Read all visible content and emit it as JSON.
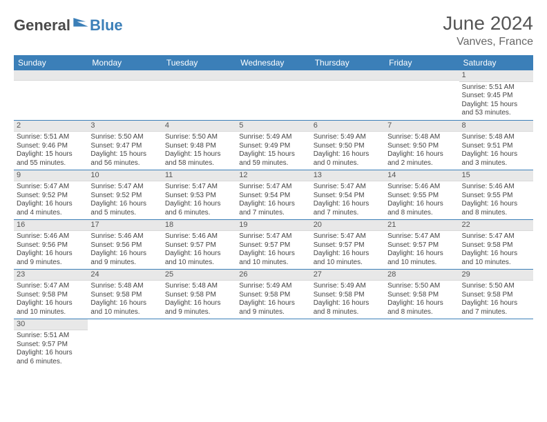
{
  "logo": {
    "text_gray": "General",
    "text_blue": "Blue"
  },
  "title": "June 2024",
  "location": "Vanves, France",
  "colors": {
    "header_bg": "#3b7fb8",
    "header_fg": "#ffffff",
    "daynum_bg": "#e8e8e8",
    "row_border": "#3b7fb8",
    "logo_blue": "#3b7fb8",
    "logo_gray": "#4a4a4a"
  },
  "weekdays": [
    "Sunday",
    "Monday",
    "Tuesday",
    "Wednesday",
    "Thursday",
    "Friday",
    "Saturday"
  ],
  "weeks": [
    [
      null,
      null,
      null,
      null,
      null,
      null,
      {
        "n": "1",
        "lines": [
          "Sunrise: 5:51 AM",
          "Sunset: 9:45 PM",
          "Daylight: 15 hours",
          "and 53 minutes."
        ]
      }
    ],
    [
      {
        "n": "2",
        "lines": [
          "Sunrise: 5:51 AM",
          "Sunset: 9:46 PM",
          "Daylight: 15 hours",
          "and 55 minutes."
        ]
      },
      {
        "n": "3",
        "lines": [
          "Sunrise: 5:50 AM",
          "Sunset: 9:47 PM",
          "Daylight: 15 hours",
          "and 56 minutes."
        ]
      },
      {
        "n": "4",
        "lines": [
          "Sunrise: 5:50 AM",
          "Sunset: 9:48 PM",
          "Daylight: 15 hours",
          "and 58 minutes."
        ]
      },
      {
        "n": "5",
        "lines": [
          "Sunrise: 5:49 AM",
          "Sunset: 9:49 PM",
          "Daylight: 15 hours",
          "and 59 minutes."
        ]
      },
      {
        "n": "6",
        "lines": [
          "Sunrise: 5:49 AM",
          "Sunset: 9:50 PM",
          "Daylight: 16 hours",
          "and 0 minutes."
        ]
      },
      {
        "n": "7",
        "lines": [
          "Sunrise: 5:48 AM",
          "Sunset: 9:50 PM",
          "Daylight: 16 hours",
          "and 2 minutes."
        ]
      },
      {
        "n": "8",
        "lines": [
          "Sunrise: 5:48 AM",
          "Sunset: 9:51 PM",
          "Daylight: 16 hours",
          "and 3 minutes."
        ]
      }
    ],
    [
      {
        "n": "9",
        "lines": [
          "Sunrise: 5:47 AM",
          "Sunset: 9:52 PM",
          "Daylight: 16 hours",
          "and 4 minutes."
        ]
      },
      {
        "n": "10",
        "lines": [
          "Sunrise: 5:47 AM",
          "Sunset: 9:52 PM",
          "Daylight: 16 hours",
          "and 5 minutes."
        ]
      },
      {
        "n": "11",
        "lines": [
          "Sunrise: 5:47 AM",
          "Sunset: 9:53 PM",
          "Daylight: 16 hours",
          "and 6 minutes."
        ]
      },
      {
        "n": "12",
        "lines": [
          "Sunrise: 5:47 AM",
          "Sunset: 9:54 PM",
          "Daylight: 16 hours",
          "and 7 minutes."
        ]
      },
      {
        "n": "13",
        "lines": [
          "Sunrise: 5:47 AM",
          "Sunset: 9:54 PM",
          "Daylight: 16 hours",
          "and 7 minutes."
        ]
      },
      {
        "n": "14",
        "lines": [
          "Sunrise: 5:46 AM",
          "Sunset: 9:55 PM",
          "Daylight: 16 hours",
          "and 8 minutes."
        ]
      },
      {
        "n": "15",
        "lines": [
          "Sunrise: 5:46 AM",
          "Sunset: 9:55 PM",
          "Daylight: 16 hours",
          "and 8 minutes."
        ]
      }
    ],
    [
      {
        "n": "16",
        "lines": [
          "Sunrise: 5:46 AM",
          "Sunset: 9:56 PM",
          "Daylight: 16 hours",
          "and 9 minutes."
        ]
      },
      {
        "n": "17",
        "lines": [
          "Sunrise: 5:46 AM",
          "Sunset: 9:56 PM",
          "Daylight: 16 hours",
          "and 9 minutes."
        ]
      },
      {
        "n": "18",
        "lines": [
          "Sunrise: 5:46 AM",
          "Sunset: 9:57 PM",
          "Daylight: 16 hours",
          "and 10 minutes."
        ]
      },
      {
        "n": "19",
        "lines": [
          "Sunrise: 5:47 AM",
          "Sunset: 9:57 PM",
          "Daylight: 16 hours",
          "and 10 minutes."
        ]
      },
      {
        "n": "20",
        "lines": [
          "Sunrise: 5:47 AM",
          "Sunset: 9:57 PM",
          "Daylight: 16 hours",
          "and 10 minutes."
        ]
      },
      {
        "n": "21",
        "lines": [
          "Sunrise: 5:47 AM",
          "Sunset: 9:57 PM",
          "Daylight: 16 hours",
          "and 10 minutes."
        ]
      },
      {
        "n": "22",
        "lines": [
          "Sunrise: 5:47 AM",
          "Sunset: 9:58 PM",
          "Daylight: 16 hours",
          "and 10 minutes."
        ]
      }
    ],
    [
      {
        "n": "23",
        "lines": [
          "Sunrise: 5:47 AM",
          "Sunset: 9:58 PM",
          "Daylight: 16 hours",
          "and 10 minutes."
        ]
      },
      {
        "n": "24",
        "lines": [
          "Sunrise: 5:48 AM",
          "Sunset: 9:58 PM",
          "Daylight: 16 hours",
          "and 10 minutes."
        ]
      },
      {
        "n": "25",
        "lines": [
          "Sunrise: 5:48 AM",
          "Sunset: 9:58 PM",
          "Daylight: 16 hours",
          "and 9 minutes."
        ]
      },
      {
        "n": "26",
        "lines": [
          "Sunrise: 5:49 AM",
          "Sunset: 9:58 PM",
          "Daylight: 16 hours",
          "and 9 minutes."
        ]
      },
      {
        "n": "27",
        "lines": [
          "Sunrise: 5:49 AM",
          "Sunset: 9:58 PM",
          "Daylight: 16 hours",
          "and 8 minutes."
        ]
      },
      {
        "n": "28",
        "lines": [
          "Sunrise: 5:50 AM",
          "Sunset: 9:58 PM",
          "Daylight: 16 hours",
          "and 8 minutes."
        ]
      },
      {
        "n": "29",
        "lines": [
          "Sunrise: 5:50 AM",
          "Sunset: 9:58 PM",
          "Daylight: 16 hours",
          "and 7 minutes."
        ]
      }
    ],
    [
      {
        "n": "30",
        "lines": [
          "Sunrise: 5:51 AM",
          "Sunset: 9:57 PM",
          "Daylight: 16 hours",
          "and 6 minutes."
        ]
      },
      null,
      null,
      null,
      null,
      null,
      null
    ]
  ]
}
